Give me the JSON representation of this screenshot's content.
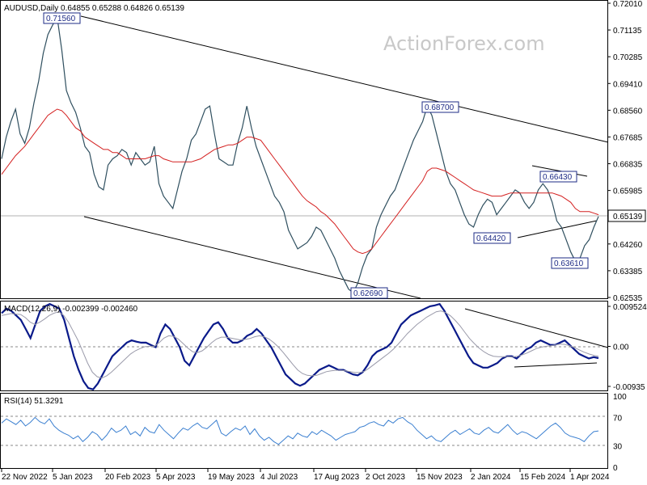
{
  "watermark": "ActionForex.com",
  "chart_data": [
    {
      "type": "line",
      "panel": "price",
      "title": "AUDUSD,Daily  0.64855 0.65288 0.64826 0.65139",
      "ohlc": {
        "open": 0.64855,
        "high": 0.65288,
        "low": 0.64826,
        "close": 0.65139
      },
      "y_ticks": [
        "0.72010",
        "0.71135",
        "0.70285",
        "0.69410",
        "0.68560",
        "0.67685",
        "0.66835",
        "0.65985",
        "0.65139",
        "0.64260",
        "0.63385",
        "0.62535"
      ],
      "ylim": [
        0.62535,
        0.7201
      ],
      "last_price": "0.65139",
      "x_ticks": [
        "22 Nov 2022",
        "5 Jan 2023",
        "20 Feb 2023",
        "5 Apr 2023",
        "19 May 2023",
        "4 Jul 2023",
        "17 Aug 2023",
        "2 Oct 2023",
        "15 Nov 2023",
        "2 Jan 2024",
        "15 Feb 2024",
        "1 Apr 2024"
      ],
      "annotations": [
        "0.71560",
        "0.68700",
        "0.66430",
        "0.64420",
        "0.63610",
        "0.62690"
      ],
      "series": [
        {
          "values": [
            0.67,
            0.677,
            0.682,
            0.686,
            0.678,
            0.675,
            0.68,
            0.688,
            0.695,
            0.704,
            0.71,
            0.713,
            0.7156,
            0.705,
            0.692,
            0.688,
            0.685,
            0.68,
            0.674,
            0.672,
            0.665,
            0.661,
            0.66,
            0.668,
            0.67,
            0.671,
            0.673,
            0.672,
            0.668,
            0.672,
            0.67,
            0.668,
            0.669,
            0.674,
            0.662,
            0.658,
            0.656,
            0.654,
            0.66,
            0.666,
            0.67,
            0.676,
            0.678,
            0.682,
            0.686,
            0.687,
            0.678,
            0.67,
            0.669,
            0.668,
            0.668,
            0.675,
            0.68,
            0.687,
            0.68,
            0.674,
            0.67,
            0.666,
            0.662,
            0.658,
            0.656,
            0.653,
            0.647,
            0.644,
            0.641,
            0.642,
            0.643,
            0.645,
            0.648,
            0.647,
            0.644,
            0.641,
            0.638,
            0.634,
            0.631,
            0.628,
            0.6269,
            0.63,
            0.635,
            0.639,
            0.641,
            0.648,
            0.652,
            0.655,
            0.658,
            0.66,
            0.664,
            0.668,
            0.672,
            0.676,
            0.679,
            0.682,
            0.687,
            0.684,
            0.678,
            0.672,
            0.666,
            0.662,
            0.66,
            0.656,
            0.652,
            0.649,
            0.648,
            0.652,
            0.655,
            0.657,
            0.656,
            0.652,
            0.654,
            0.656,
            0.658,
            0.66,
            0.659,
            0.656,
            0.654,
            0.656,
            0.66,
            0.662,
            0.66,
            0.656,
            0.65,
            0.648,
            0.644,
            0.64,
            0.637,
            0.638,
            0.642,
            0.644,
            0.648,
            0.6514
          ]
        },
        {
          "values": [
            0.665,
            0.667,
            0.669,
            0.671,
            0.6725,
            0.674,
            0.676,
            0.678,
            0.68,
            0.682,
            0.684,
            0.685,
            0.686,
            0.6855,
            0.684,
            0.682,
            0.68,
            0.679,
            0.677,
            0.676,
            0.675,
            0.674,
            0.673,
            0.673,
            0.672,
            0.672,
            0.671,
            0.67,
            0.67,
            0.67,
            0.67,
            0.67,
            0.6705,
            0.671,
            0.671,
            0.67,
            0.6695,
            0.669,
            0.669,
            0.669,
            0.669,
            0.669,
            0.6695,
            0.67,
            0.671,
            0.672,
            0.673,
            0.6735,
            0.674,
            0.6745,
            0.6745,
            0.675,
            0.676,
            0.677,
            0.677,
            0.6765,
            0.676,
            0.674,
            0.672,
            0.67,
            0.668,
            0.666,
            0.664,
            0.662,
            0.66,
            0.658,
            0.6565,
            0.6555,
            0.6545,
            0.653,
            0.652,
            0.6505,
            0.649,
            0.647,
            0.645,
            0.643,
            0.641,
            0.64,
            0.6395,
            0.64,
            0.641,
            0.643,
            0.645,
            0.647,
            0.649,
            0.651,
            0.653,
            0.655,
            0.657,
            0.659,
            0.661,
            0.663,
            0.666,
            0.667,
            0.667,
            0.6665,
            0.666,
            0.665,
            0.664,
            0.663,
            0.662,
            0.661,
            0.66,
            0.6595,
            0.659,
            0.6585,
            0.658,
            0.658,
            0.658,
            0.6585,
            0.659,
            0.659,
            0.659,
            0.659,
            0.659,
            0.659,
            0.659,
            0.659,
            0.659,
            0.659,
            0.6585,
            0.658,
            0.657,
            0.656,
            0.654,
            0.653,
            0.653,
            0.653,
            0.6525,
            0.652
          ]
        }
      ]
    },
    {
      "type": "line",
      "panel": "macd",
      "title": "MACD(12,26,9) -0.002399 -0.002460",
      "y_ticks": [
        "0.009524",
        "0.00",
        "-0.00935"
      ],
      "ylim": [
        -0.00935,
        0.009524
      ],
      "series": [
        {
          "values": [
            0.0075,
            0.0085,
            0.008,
            0.007,
            0.006,
            0.004,
            0.002,
            0.005,
            0.008,
            0.009,
            0.0095,
            0.009,
            0.0085,
            0.006,
            0.002,
            -0.002,
            -0.005,
            -0.0075,
            -0.009,
            -0.0093,
            -0.008,
            -0.006,
            -0.004,
            -0.002,
            -0.001,
            0.0,
            0.001,
            0.0015,
            0.0012,
            0.001,
            0.001,
            0.0005,
            0.0,
            0.003,
            0.005,
            0.004,
            0.002,
            0.0,
            -0.003,
            -0.004,
            -0.002,
            0.0,
            0.002,
            0.0035,
            0.005,
            0.0055,
            0.004,
            0.002,
            0.001,
            0.001,
            0.0015,
            0.0025,
            0.003,
            0.004,
            0.003,
            0.0015,
            0.0,
            -0.002,
            -0.004,
            -0.006,
            -0.007,
            -0.008,
            -0.0085,
            -0.008,
            -0.007,
            -0.006,
            -0.005,
            -0.0045,
            -0.004,
            -0.0045,
            -0.005,
            -0.005,
            -0.0055,
            -0.006,
            -0.0062,
            -0.0055,
            -0.004,
            -0.002,
            -0.001,
            -0.0005,
            0.0,
            0.001,
            0.003,
            0.005,
            0.006,
            0.007,
            0.0075,
            0.008,
            0.0085,
            0.009,
            0.0092,
            0.0095,
            0.008,
            0.006,
            0.004,
            0.002,
            0.0,
            -0.002,
            -0.0035,
            -0.004,
            -0.0045,
            -0.0045,
            -0.004,
            -0.0035,
            -0.0025,
            -0.002,
            -0.002,
            -0.0025,
            -0.0015,
            -0.0005,
            0.0,
            0.001,
            0.0015,
            0.001,
            0.0005,
            0.0005,
            0.001,
            0.0015,
            0.0005,
            -0.0005,
            -0.0015,
            -0.002,
            -0.0025,
            -0.0022,
            -0.0024
          ]
        },
        {
          "values": [
            0.007,
            0.0072,
            0.0074,
            0.0073,
            0.0072,
            0.0065,
            0.0055,
            0.005,
            0.0055,
            0.0062,
            0.007,
            0.0075,
            0.0078,
            0.007,
            0.0055,
            0.0035,
            0.0015,
            -0.001,
            -0.0035,
            -0.0055,
            -0.0065,
            -0.0068,
            -0.0063,
            -0.0055,
            -0.0045,
            -0.0035,
            -0.0025,
            -0.0015,
            -0.0008,
            -0.0003,
            0.0001,
            0.0002,
            0.0002,
            0.001,
            0.002,
            0.0025,
            0.0024,
            0.0018,
            0.0008,
            -0.0002,
            -0.001,
            -0.0012,
            -0.0008,
            0.0,
            0.001,
            0.0018,
            0.0022,
            0.0022,
            0.002,
            0.0018,
            0.0016,
            0.0017,
            0.0019,
            0.0023,
            0.0025,
            0.0023,
            0.0018,
            0.001,
            0.0,
            -0.0012,
            -0.0025,
            -0.0038,
            -0.005,
            -0.0058,
            -0.0062,
            -0.0063,
            -0.0062,
            -0.0058,
            -0.0054,
            -0.0052,
            -0.0051,
            -0.0051,
            -0.0052,
            -0.0054,
            -0.0056,
            -0.0056,
            -0.0053,
            -0.0046,
            -0.0038,
            -0.003,
            -0.0022,
            -0.0014,
            -0.0005,
            0.0006,
            0.0018,
            0.003,
            0.004,
            0.005,
            0.0058,
            0.0066,
            0.0072,
            0.0078,
            0.008,
            0.0076,
            0.0069,
            0.0059,
            0.0047,
            0.0033,
            0.0019,
            0.0008,
            -0.0002,
            -0.001,
            -0.0016,
            -0.002,
            -0.0021,
            -0.0021,
            -0.0021,
            -0.0022,
            -0.002,
            -0.0017,
            -0.0013,
            -0.0008,
            -0.0003,
            0.0,
            0.0002,
            0.0003,
            0.0005,
            0.0007,
            0.0006,
            0.0003,
            -0.0001,
            -0.0006,
            -0.0011,
            -0.0015,
            -0.0018,
            -0.002
          ]
        }
      ]
    },
    {
      "type": "line",
      "panel": "rsi",
      "title": "RSI(14) 51.3291",
      "y_ticks": [
        "100",
        "70",
        "30",
        "0"
      ],
      "ylim": [
        0,
        100
      ],
      "series": [
        {
          "values": [
            62,
            68,
            64,
            60,
            66,
            58,
            63,
            70,
            64,
            61,
            68,
            58,
            52,
            48,
            45,
            40,
            44,
            36,
            42,
            50,
            46,
            38,
            45,
            55,
            49,
            52,
            58,
            46,
            50,
            44,
            56,
            50,
            48,
            60,
            52,
            46,
            40,
            48,
            55,
            52,
            58,
            62,
            56,
            54,
            60,
            66,
            48,
            44,
            50,
            55,
            52,
            58,
            46,
            54,
            44,
            38,
            42,
            36,
            32,
            38,
            44,
            40,
            48,
            44,
            42,
            50,
            46,
            52,
            48,
            44,
            38,
            42,
            46,
            48,
            50,
            56,
            58,
            62,
            64,
            60,
            58,
            66,
            62,
            68,
            70,
            64,
            60,
            52,
            46,
            40,
            44,
            38,
            36,
            42,
            48,
            52,
            46,
            50,
            54,
            48,
            46,
            52,
            56,
            50,
            48,
            54,
            60,
            52,
            46,
            50,
            48,
            44,
            40,
            46,
            52,
            58,
            62,
            56,
            48,
            44,
            42,
            40,
            36,
            44,
            50,
            51
          ]
        }
      ]
    }
  ]
}
